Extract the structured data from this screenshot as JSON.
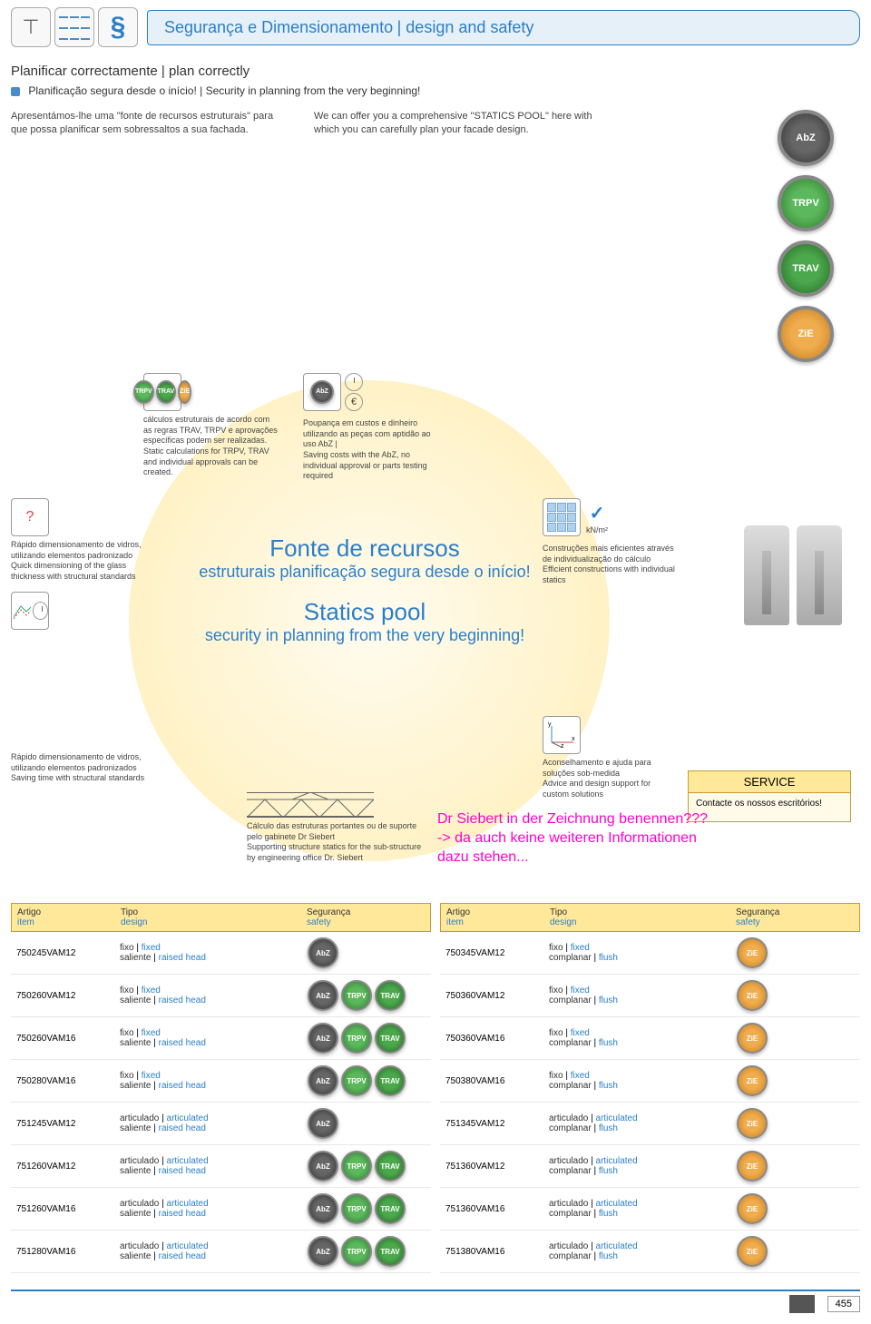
{
  "header": {
    "title_pt": "Segurança e Dimensionamento",
    "title_en": "design and safety"
  },
  "intro": {
    "heading": "Planificar correctamente | plan correctly",
    "bullet": "Planificação segura desde o início! | Security in planning from the very beginning!",
    "col1": "Apresentámos-lhe uma \"fonte de recursos estruturais\" para que possa planificar sem sobressaltos a sua fachada.",
    "col2": "We can offer you a comprehensive \"STATICS POOL\" here with which you can carefully plan your facade design."
  },
  "badges": [
    "AbZ",
    "TRPV",
    "TRAV",
    "ZiE"
  ],
  "circle": {
    "fc_title": "Fonte de recursos",
    "fc_sub": "estruturais planificação segura desde o início!",
    "sp_title": "Statics pool",
    "sp_sub": "security in planning from the very beginning!"
  },
  "boxes": {
    "b1": "Rápido dimensionamento de vidros, utilizando elementos padronizado\nQuick dimensioning of the glass thickness with structural standards",
    "b2": "Rápido dimensionamento de vidros, utilizando elementos padronizados\nSaving time with structural standards",
    "b3": "cálculos estruturais de acordo com as regras TRAV, TRPV e aprovações específicas podem ser realizadas.\nStatic calculations for TRPV, TRAV and individual approvals can be created.",
    "b4": "Poupança em custos e dinheiro utilizando as peças com aptidão ao uso AbZ |\nSaving costs with the AbZ, no individual approval or parts testing required",
    "b5_kn": "kN/m²",
    "b5": "Construções mais eficientes através de individualização do cálculo\nEfficient constructions with individual statics",
    "b6": "Aconselhamento e ajuda para soluções sob-medida\nAdvice and design support for custom solutions",
    "b7": "Cálculo das estruturas portantes ou de suporte pelo gabinete Dr Siebert\nSupporting structure statics for the sub-structure by engineering office Dr. Siebert"
  },
  "service": {
    "hdr": "SERVICE",
    "body": "Contacte os nossos escritórios!"
  },
  "magenta": "Dr Siebert in der Zeichnung benennen???\n-> da auch keine weiteren Informationen dazu stehen...",
  "table_headers": {
    "c1_pt": "Artigo",
    "c1_en": "item",
    "c2_pt": "Tipo",
    "c2_en": "design",
    "c3_pt": "Segurança",
    "c3_en": "safety"
  },
  "left_table": [
    {
      "item": "750245VAM12",
      "d_pt": "fixo",
      "d_en": "fixed",
      "s_pt": "saliente",
      "s_en": "raised head",
      "badges": [
        "abz"
      ]
    },
    {
      "item": "750260VAM12",
      "d_pt": "fixo",
      "d_en": "fixed",
      "s_pt": "saliente",
      "s_en": "raised head",
      "badges": [
        "abz",
        "trpv",
        "trav"
      ]
    },
    {
      "item": "750260VAM16",
      "d_pt": "fixo",
      "d_en": "fixed",
      "s_pt": "saliente",
      "s_en": "raised head",
      "badges": [
        "abz",
        "trpv",
        "trav"
      ]
    },
    {
      "item": "750280VAM16",
      "d_pt": "fixo",
      "d_en": "fixed",
      "s_pt": "saliente",
      "s_en": "raised head",
      "badges": [
        "abz",
        "trpv",
        "trav"
      ]
    },
    {
      "item": "751245VAM12",
      "d_pt": "articulado",
      "d_en": "articulated",
      "s_pt": "saliente",
      "s_en": "raised head",
      "badges": [
        "abz"
      ]
    },
    {
      "item": "751260VAM12",
      "d_pt": "articulado",
      "d_en": "articulated",
      "s_pt": "saliente",
      "s_en": "raised head",
      "badges": [
        "abz",
        "trpv",
        "trav"
      ]
    },
    {
      "item": "751260VAM16",
      "d_pt": "articulado",
      "d_en": "articulated",
      "s_pt": "saliente",
      "s_en": "raised head",
      "badges": [
        "abz",
        "trpv",
        "trav"
      ]
    },
    {
      "item": "751280VAM16",
      "d_pt": "articulado",
      "d_en": "articulated",
      "s_pt": "saliente",
      "s_en": "raised head",
      "badges": [
        "abz",
        "trpv",
        "trav"
      ]
    }
  ],
  "right_table": [
    {
      "item": "750345VAM12",
      "d_pt": "fixo",
      "d_en": "fixed",
      "s_pt": "complanar",
      "s_en": "flush",
      "badges": [
        "zie"
      ]
    },
    {
      "item": "750360VAM12",
      "d_pt": "fixo",
      "d_en": "fixed",
      "s_pt": "complanar",
      "s_en": "flush",
      "badges": [
        "zie"
      ]
    },
    {
      "item": "750360VAM16",
      "d_pt": "fixo",
      "d_en": "fixed",
      "s_pt": "complanar",
      "s_en": "flush",
      "badges": [
        "zie"
      ]
    },
    {
      "item": "750380VAM16",
      "d_pt": "fixo",
      "d_en": "fixed",
      "s_pt": "complanar",
      "s_en": "flush",
      "badges": [
        "zie"
      ]
    },
    {
      "item": "751345VAM12",
      "d_pt": "articulado",
      "d_en": "articulated",
      "s_pt": "complanar",
      "s_en": "flush",
      "badges": [
        "zie"
      ]
    },
    {
      "item": "751360VAM12",
      "d_pt": "articulado",
      "d_en": "articulated",
      "s_pt": "complanar",
      "s_en": "flush",
      "badges": [
        "zie"
      ]
    },
    {
      "item": "751360VAM16",
      "d_pt": "articulado",
      "d_en": "articulated",
      "s_pt": "complanar",
      "s_en": "flush",
      "badges": [
        "zie"
      ]
    },
    {
      "item": "751380VAM16",
      "d_pt": "articulado",
      "d_en": "articulated",
      "s_pt": "complanar",
      "s_en": "flush",
      "badges": [
        "zie"
      ]
    }
  ],
  "page_number": "455"
}
